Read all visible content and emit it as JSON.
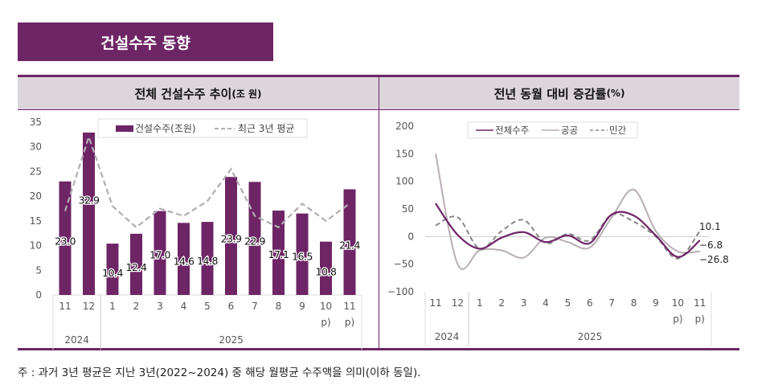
{
  "title": "건설수주 동향",
  "footnote": "주 : 과거 3년 평균은 지난 3년(2022~2024) 중 해당 월평균 수주액을 의미(이하 동일).",
  "colors": {
    "accent": "#6e2566",
    "header_bg": "#dcd5db",
    "avg_line": "#b3adb3",
    "public_line": "#b8aeb6",
    "private_line": "#8a8589"
  },
  "chart_data": [
    {
      "type": "bar",
      "title": "전체 건설수주 추이",
      "title_unit": "(조 원)",
      "categories": [
        "11",
        "12",
        "1",
        "2",
        "3",
        "4",
        "5",
        "6",
        "7",
        "8",
        "9",
        "10\np)",
        "11\np)"
      ],
      "category_labels": [
        [
          "11"
        ],
        [
          "12"
        ],
        [
          "1"
        ],
        [
          "2"
        ],
        [
          "3"
        ],
        [
          "4"
        ],
        [
          "5"
        ],
        [
          "6"
        ],
        [
          "7"
        ],
        [
          "8"
        ],
        [
          "9"
        ],
        [
          "10",
          "p)"
        ],
        [
          "11",
          "p)"
        ]
      ],
      "year_groups": [
        {
          "label": "2024",
          "count": 2
        },
        {
          "label": "2025",
          "count": 11
        }
      ],
      "ylim": [
        0,
        35
      ],
      "yticks": [
        0,
        5,
        10,
        15,
        20,
        25,
        30,
        35
      ],
      "legend_placement": "top",
      "series": [
        {
          "name": "건설수주(조원)",
          "kind": "bar",
          "values": [
            23.0,
            32.9,
            10.4,
            12.4,
            17.0,
            14.6,
            14.8,
            23.9,
            22.9,
            17.1,
            16.5,
            10.8,
            21.4
          ],
          "labels": [
            "23.0",
            "32.9",
            "10.4",
            "12.4",
            "17.0",
            "14.6",
            "14.8",
            "23.9",
            "22.9",
            "17.1",
            "16.5",
            "10.8",
            "21.4"
          ]
        },
        {
          "name": "최근 3년 평균",
          "kind": "dashed-line",
          "values": [
            17,
            32,
            18,
            13.7,
            17.5,
            16,
            19,
            25.5,
            16,
            13.7,
            18.5,
            15,
            18.5
          ]
        }
      ]
    },
    {
      "type": "line",
      "title": "전년 동월 대비 증감률",
      "title_unit": "(%)",
      "categories": [
        "11",
        "12",
        "1",
        "2",
        "3",
        "4",
        "5",
        "6",
        "7",
        "8",
        "9",
        "10\np)",
        "11\np)"
      ],
      "category_labels": [
        [
          "11"
        ],
        [
          "12"
        ],
        [
          "1"
        ],
        [
          "2"
        ],
        [
          "3"
        ],
        [
          "4"
        ],
        [
          "5"
        ],
        [
          "6"
        ],
        [
          "7"
        ],
        [
          "8"
        ],
        [
          "9"
        ],
        [
          "10",
          "p)"
        ],
        [
          "11",
          "p)"
        ]
      ],
      "year_groups": [
        {
          "label": "2024",
          "count": 2
        },
        {
          "label": "2025",
          "count": 11
        }
      ],
      "ylim": [
        -100,
        200
      ],
      "yticks": [
        -100,
        -50,
        0,
        50,
        100,
        150,
        200
      ],
      "legend_placement": "top",
      "series": [
        {
          "name": "전체수주",
          "style": "solid-dark",
          "values": [
            60,
            3,
            -22,
            -2,
            8,
            -10,
            2,
            -12,
            40,
            38,
            2,
            -37,
            -6.8
          ]
        },
        {
          "name": "공공",
          "style": "solid-light",
          "values": [
            150,
            -50,
            -25,
            -25,
            -38,
            -2,
            -10,
            -20,
            35,
            85,
            10,
            -27,
            -26.8
          ]
        },
        {
          "name": "민간",
          "style": "dashed",
          "values": [
            20,
            35,
            -22,
            10,
            30,
            -12,
            5,
            -7,
            40,
            27,
            0,
            -40,
            10.1
          ]
        }
      ],
      "end_labels": [
        "10.1",
        "-6.8",
        "-26.8"
      ]
    }
  ]
}
